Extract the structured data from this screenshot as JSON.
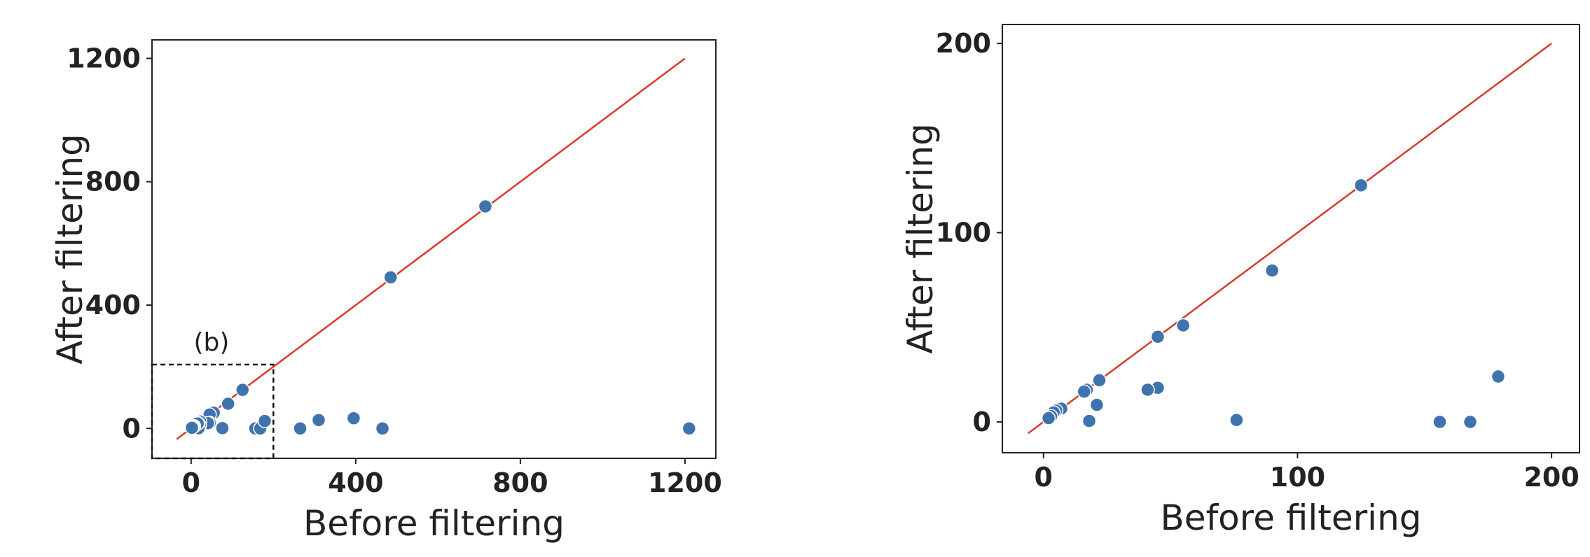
{
  "chart_data": [
    {
      "type": "scatter",
      "xlabel": "Before filtering",
      "ylabel": "After filtering",
      "x": [
        125,
        90,
        55,
        45,
        45,
        41,
        22,
        21,
        18,
        17,
        16,
        76,
        156,
        168,
        179,
        7,
        5,
        4,
        3,
        2,
        265,
        310,
        395,
        465,
        485,
        715,
        1210
      ],
      "y": [
        125,
        80,
        51,
        45,
        18,
        17,
        22,
        9,
        0.5,
        17,
        16,
        1,
        0,
        0,
        24,
        7,
        6,
        5,
        3,
        2,
        0,
        27,
        33,
        0,
        490,
        720,
        0
      ],
      "color": "#3f73ad",
      "reference_line": {
        "x": [
          -35,
          1200
        ],
        "y": [
          -35,
          1200
        ],
        "color": "#d63b2b"
      },
      "zoom_box": {
        "label": "(b)",
        "xlim": [
          -95,
          200
        ],
        "ylim": [
          -97,
          207
        ]
      },
      "xlim": [
        -95,
        1275
      ],
      "ylim": [
        -97,
        1260
      ],
      "xticks": [
        0,
        400,
        800,
        1200
      ],
      "yticks": [
        0,
        400,
        800,
        1200
      ]
    },
    {
      "type": "scatter",
      "xlabel": "Before filtering",
      "ylabel": "After filtering",
      "x": [
        125,
        90,
        55,
        45,
        45,
        41,
        22,
        21,
        18,
        17,
        16,
        76,
        156,
        168,
        179,
        7,
        5,
        4,
        3,
        2
      ],
      "y": [
        125,
        80,
        51,
        45,
        18,
        17,
        22,
        9,
        0.5,
        17,
        16,
        1,
        0,
        0,
        24,
        7,
        6,
        5,
        3,
        2
      ],
      "color": "#3f73ad",
      "reference_line": {
        "x": [
          -6,
          200
        ],
        "y": [
          -6,
          200
        ],
        "color": "#d63b2b"
      },
      "xlim": [
        -16.2,
        211
      ],
      "ylim": [
        -16.3,
        210
      ],
      "xticks": [
        0,
        100,
        200
      ],
      "yticks": [
        0,
        100,
        200
      ]
    }
  ]
}
